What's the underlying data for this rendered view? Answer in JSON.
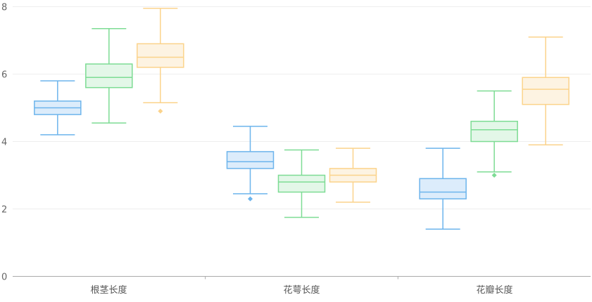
{
  "chart_data": {
    "type": "boxplot",
    "categories": [
      "根茎长度",
      "花萼长度",
      "花瓣长度"
    ],
    "ylim": [
      0,
      8
    ],
    "yticks": [
      "0",
      "2",
      "4",
      "6",
      "8"
    ],
    "grid": true,
    "colors": [
      {
        "stroke": "#6cb4ec",
        "fill": "#dcecfb"
      },
      {
        "stroke": "#7ddc94",
        "fill": "#e3f7e8"
      },
      {
        "stroke": "#fbd38b",
        "fill": "#fdf3e2"
      }
    ],
    "series": [
      {
        "boxes": [
          {
            "min": 4.2,
            "q1": 4.8,
            "median": 5.0,
            "q3": 5.2,
            "max": 5.8,
            "outliers": []
          },
          {
            "min": 2.45,
            "q1": 3.2,
            "median": 3.4,
            "q3": 3.7,
            "max": 4.45,
            "outliers": [
              2.3
            ]
          },
          {
            "min": 1.4,
            "q1": 2.3,
            "median": 2.5,
            "q3": 2.9,
            "max": 3.8,
            "outliers": []
          }
        ]
      },
      {
        "boxes": [
          {
            "min": 4.55,
            "q1": 5.6,
            "median": 5.9,
            "q3": 6.3,
            "max": 7.35,
            "outliers": []
          },
          {
            "min": 1.75,
            "q1": 2.5,
            "median": 2.8,
            "q3": 3.0,
            "max": 3.75,
            "outliers": []
          },
          {
            "min": 3.1,
            "q1": 4.0,
            "median": 4.35,
            "q3": 4.6,
            "max": 5.5,
            "outliers": [
              3.0
            ]
          }
        ]
      },
      {
        "boxes": [
          {
            "min": 5.15,
            "q1": 6.2,
            "median": 6.5,
            "q3": 6.9,
            "max": 7.95,
            "outliers": [
              4.9
            ]
          },
          {
            "min": 2.2,
            "q1": 2.8,
            "median": 3.0,
            "q3": 3.2,
            "max": 3.8,
            "outliers": []
          },
          {
            "min": 3.9,
            "q1": 5.1,
            "median": 5.55,
            "q3": 5.9,
            "max": 7.1,
            "outliers": []
          }
        ]
      }
    ]
  }
}
